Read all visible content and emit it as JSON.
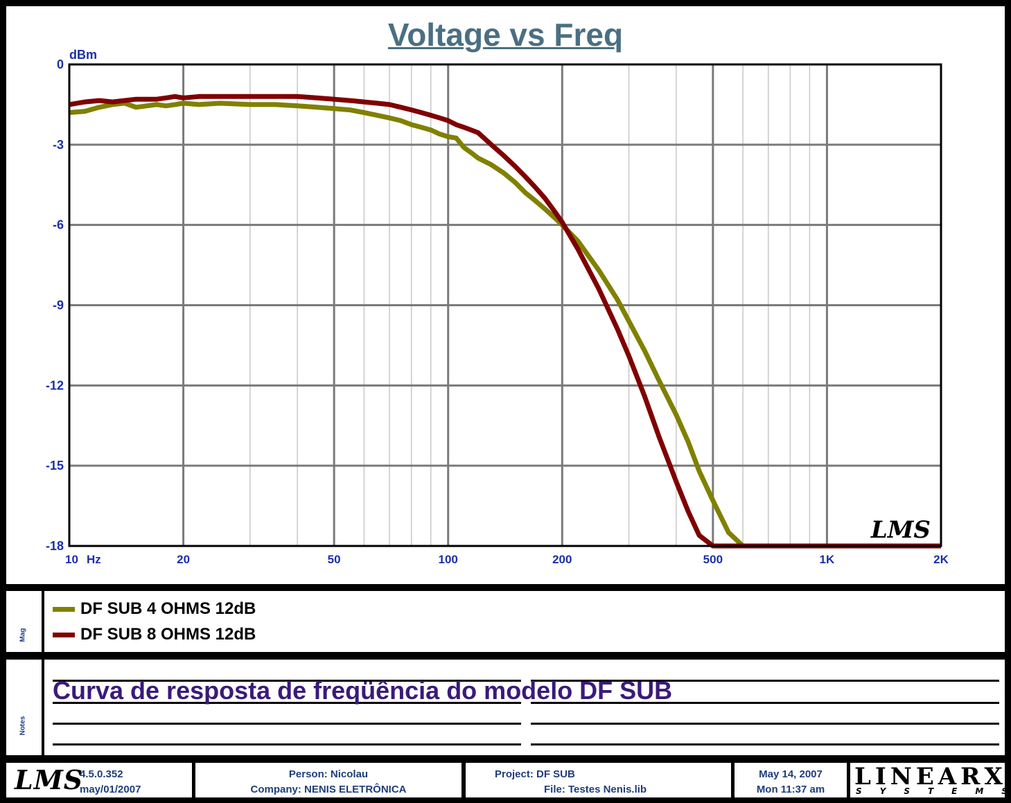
{
  "chart_data": {
    "type": "line",
    "title": "Voltage vs Freq",
    "ylabel": "dBm",
    "xlabel": "Hz",
    "x_scale": "log",
    "xlim": [
      10,
      2000
    ],
    "ylim": [
      -18,
      0
    ],
    "yticks": [
      0,
      -3,
      -6,
      -9,
      -12,
      -15,
      -18
    ],
    "ytick_labels": [
      "0",
      "-3",
      "-6",
      "-9",
      "-12",
      "-15",
      "-18"
    ],
    "xtick_labels": [
      {
        "value": 10,
        "label": "10"
      },
      {
        "value": 20,
        "label": "20"
      },
      {
        "value": 50,
        "label": "50"
      },
      {
        "value": 100,
        "label": "100"
      },
      {
        "value": 200,
        "label": "200"
      },
      {
        "value": 500,
        "label": "500"
      },
      {
        "value": 1000,
        "label": "1K"
      },
      {
        "value": 2000,
        "label": "2K"
      }
    ],
    "grid": true,
    "series": [
      {
        "name": "DF SUB  4 OHMS 12dB",
        "color": "#808000",
        "x": [
          10,
          11,
          12,
          13,
          14,
          15,
          16,
          17,
          18,
          19,
          20,
          22,
          25,
          30,
          35,
          40,
          45,
          50,
          55,
          60,
          65,
          70,
          75,
          80,
          85,
          90,
          95,
          100,
          105,
          110,
          115,
          120,
          130,
          140,
          150,
          160,
          170,
          180,
          190,
          200,
          220,
          250,
          280,
          300,
          330,
          360,
          400,
          430,
          460,
          500,
          550,
          600,
          650,
          700,
          800,
          1000,
          1500,
          2000
        ],
        "values": [
          -1.8,
          -1.75,
          -1.6,
          -1.5,
          -1.45,
          -1.6,
          -1.55,
          -1.5,
          -1.55,
          -1.5,
          -1.45,
          -1.5,
          -1.45,
          -1.5,
          -1.5,
          -1.55,
          -1.6,
          -1.65,
          -1.7,
          -1.8,
          -1.9,
          -2.0,
          -2.1,
          -2.25,
          -2.35,
          -2.45,
          -2.6,
          -2.7,
          -2.75,
          -3.1,
          -3.3,
          -3.5,
          -3.75,
          -4.05,
          -4.4,
          -4.8,
          -5.1,
          -5.4,
          -5.7,
          -6.0,
          -6.6,
          -7.7,
          -8.8,
          -9.6,
          -10.7,
          -11.8,
          -13.1,
          -14.1,
          -15.2,
          -16.3,
          -17.5,
          -18.0,
          -18.0,
          -18.0,
          -18.0,
          -18.0,
          -18.0,
          -18.0
        ]
      },
      {
        "name": "DF SUB  8 OHMS 12dB",
        "color": "#800000",
        "x": [
          10,
          11,
          12,
          13,
          14,
          15,
          16,
          17,
          18,
          19,
          20,
          22,
          25,
          30,
          35,
          40,
          45,
          50,
          55,
          60,
          65,
          70,
          75,
          80,
          85,
          90,
          95,
          100,
          105,
          110,
          115,
          120,
          130,
          140,
          150,
          160,
          170,
          180,
          190,
          200,
          220,
          250,
          280,
          300,
          330,
          360,
          400,
          430,
          460,
          500,
          550,
          600,
          700,
          800,
          1000,
          1500,
          2000
        ],
        "values": [
          -1.5,
          -1.4,
          -1.35,
          -1.4,
          -1.35,
          -1.3,
          -1.3,
          -1.3,
          -1.25,
          -1.2,
          -1.25,
          -1.2,
          -1.2,
          -1.2,
          -1.2,
          -1.2,
          -1.25,
          -1.3,
          -1.35,
          -1.4,
          -1.45,
          -1.5,
          -1.6,
          -1.7,
          -1.8,
          -1.9,
          -2.0,
          -2.1,
          -2.25,
          -2.35,
          -2.45,
          -2.55,
          -3.0,
          -3.4,
          -3.8,
          -4.2,
          -4.6,
          -5.0,
          -5.45,
          -5.9,
          -6.9,
          -8.4,
          -9.9,
          -10.9,
          -12.4,
          -13.9,
          -15.6,
          -16.7,
          -17.6,
          -18.0,
          -18.0,
          -18.0,
          -18.0,
          -18.0,
          -18.0,
          -18.0,
          -18.0
        ]
      }
    ]
  },
  "side_labels": {
    "legend": "Mag",
    "notes": "Notes"
  },
  "watermark": "LMS",
  "notes": {
    "text": "Curva de resposta de freqüência  do modelo DF SUB"
  },
  "footer": {
    "logo": "LMS",
    "version": "4.5.0.352",
    "release_date": "may/01/2007",
    "person": "Person: Nicolau",
    "company": "Company: NENIS ELETRÔNICA",
    "project": "Project: DF SUB",
    "file": "File: Testes Nenis.lib",
    "date": "May 14, 2007",
    "time": "Mon 11:37 am",
    "brand": "LINEARX",
    "brand_sub": "SYSTEMS"
  }
}
